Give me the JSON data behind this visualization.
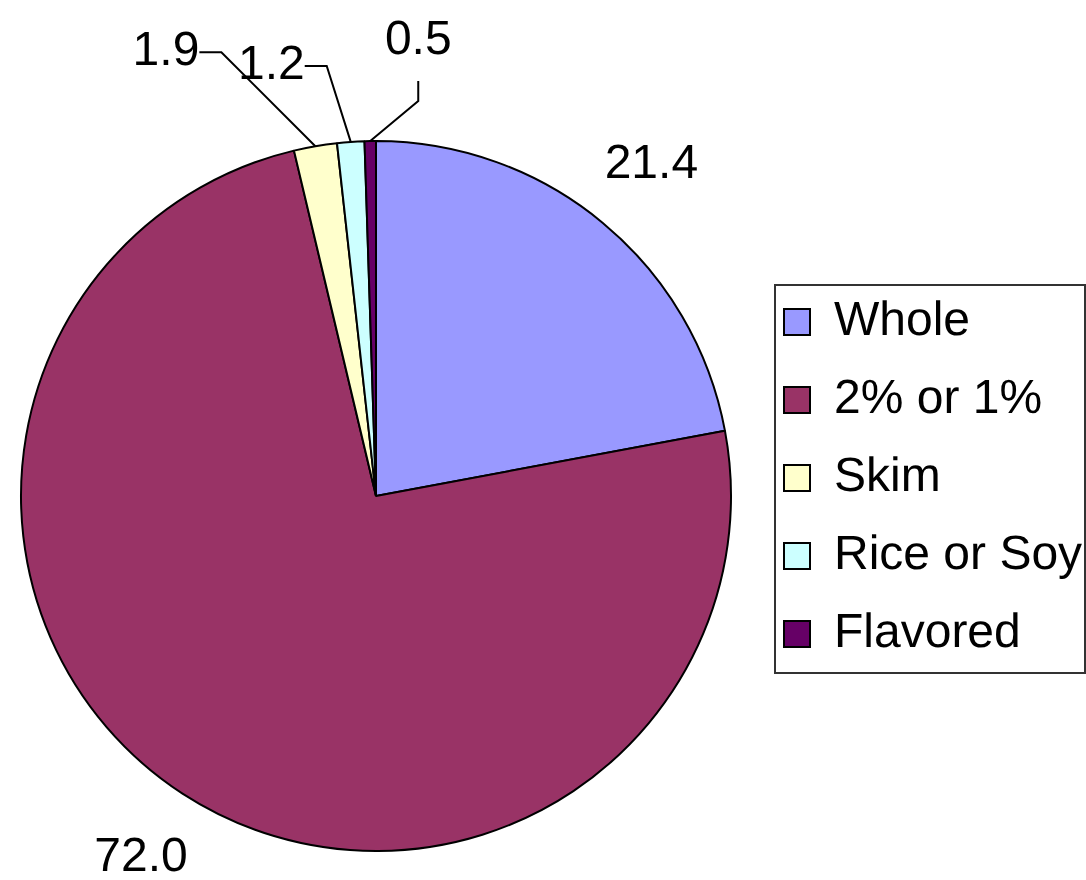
{
  "chart_data": {
    "type": "pie",
    "categories": [
      "Whole",
      "2% or 1%",
      "Skim",
      "Rice or Soy",
      "Flavored"
    ],
    "values": [
      21.4,
      72.0,
      1.9,
      1.2,
      0.5
    ],
    "colors": [
      "#9999ff",
      "#993366",
      "#ffffcc",
      "#ccffff",
      "#660066"
    ],
    "value_labels": [
      "21.4",
      "72.0",
      "1.9",
      "1.2",
      "0.5"
    ],
    "legend": "right"
  }
}
